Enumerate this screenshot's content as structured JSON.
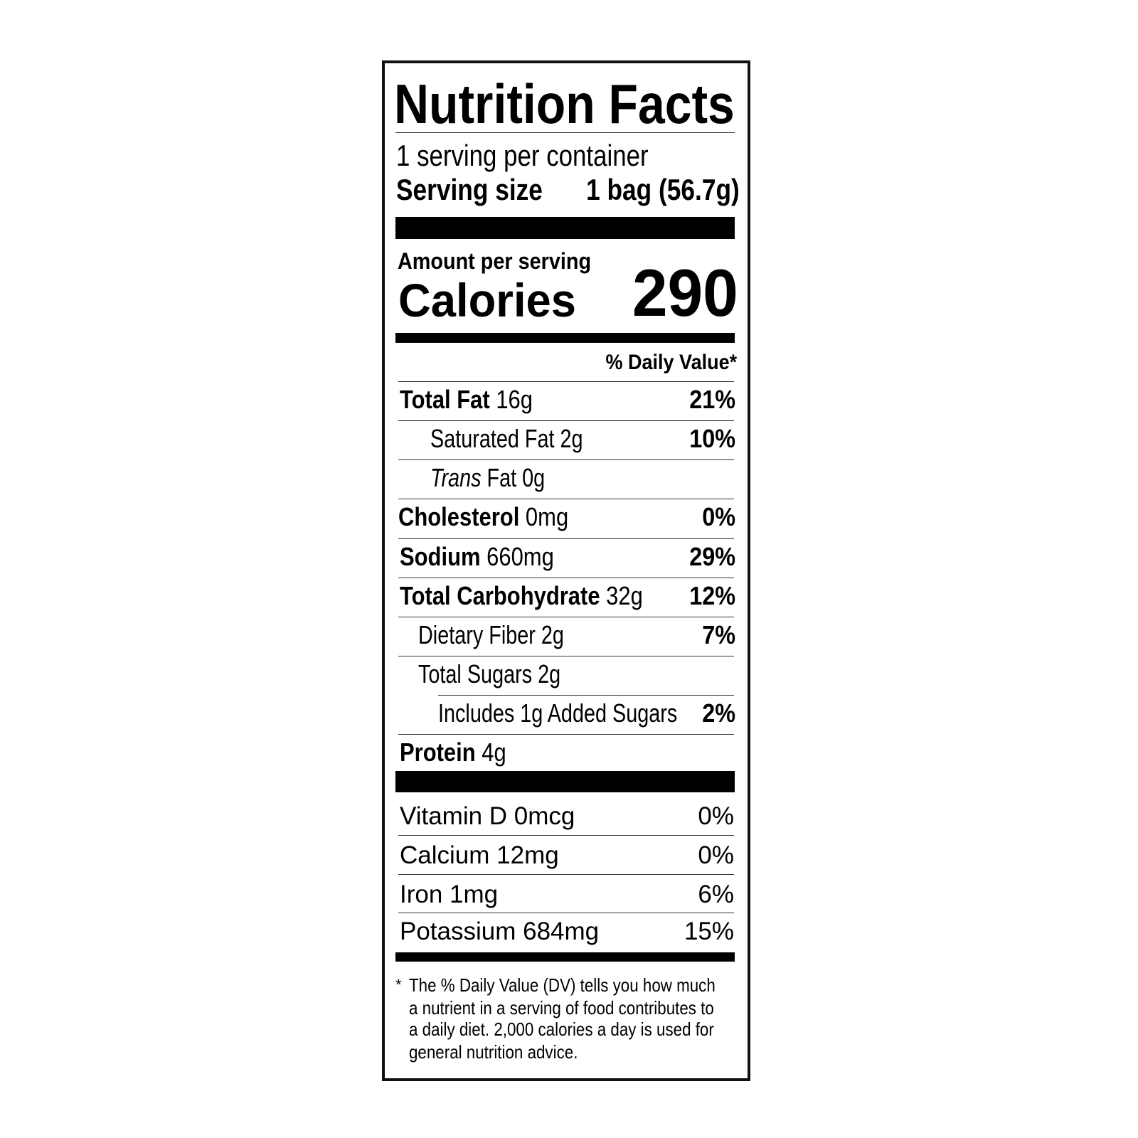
{
  "title": "Nutrition Facts",
  "servings_per_container": "1 serving per container",
  "serving_size": {
    "label": "Serving size",
    "value": "1 bag (56.7g)"
  },
  "amount_per_serving": "Amount per serving",
  "calories": {
    "label": "Calories",
    "value": "290"
  },
  "daily_value_header": "% Daily Value*",
  "nutrients": [
    {
      "name": "Total Fat",
      "amount": "16g",
      "dv": "21%"
    },
    {
      "name": "Saturated Fat 2g",
      "amount": "",
      "dv": "10%"
    },
    {
      "name": "Trans",
      "amount": "Fat 0g",
      "dv": ""
    },
    {
      "name": "Cholesterol",
      "amount": "0mg",
      "dv": "0%"
    },
    {
      "name": "Sodium",
      "amount": "660mg",
      "dv": "29%"
    },
    {
      "name": "Total Carbohydrate",
      "amount": "32g",
      "dv": "12%"
    },
    {
      "name": "Dietary Fiber 2g",
      "amount": "",
      "dv": "7%"
    },
    {
      "name": "Total Sugars 2g",
      "amount": "",
      "dv": ""
    },
    {
      "name": "Includes 1g Added Sugars",
      "amount": "",
      "dv": "2%"
    },
    {
      "name": "Protein",
      "amount": "4g",
      "dv": ""
    }
  ],
  "vitamins": [
    {
      "name": "Vitamin D 0mcg",
      "dv": "0%"
    },
    {
      "name": "Calcium 12mg",
      "dv": "0%"
    },
    {
      "name": "Iron 1mg",
      "dv": "6%"
    },
    {
      "name": "Potassium 684mg",
      "dv": "15%"
    }
  ],
  "footnote": {
    "asterisk": "*",
    "lines": [
      "The % Daily Value (DV) tells you how much",
      "a nutrient in a serving of food contributes to",
      "a daily diet. 2,000 calories a day is used for",
      "general nutrition advice."
    ]
  }
}
